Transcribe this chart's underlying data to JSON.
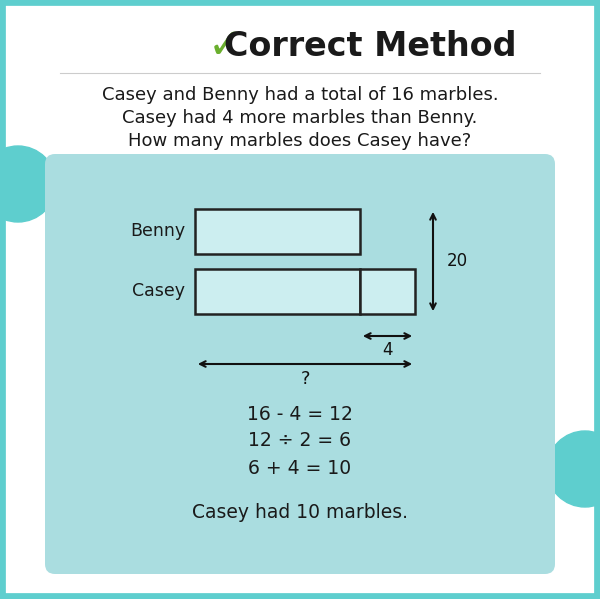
{
  "title": "Correct Method",
  "checkmark_color": "#6aaf2e",
  "title_color": "#1a1a1a",
  "background_color": "#ffffff",
  "border_color": "#5ecece",
  "border_linewidth": 7,
  "teal_circle_left_color": "#5ecece",
  "teal_circle_right_color": "#5ecece",
  "problem_lines": [
    "Casey and Benny had a total of 16 marbles.",
    "Casey had 4 more marbles than Benny.",
    "How many marbles does Casey have?"
  ],
  "problem_fontsize": 13.0,
  "diagram_bg_color": "#aadde0",
  "benny_label": "Benny",
  "casey_label": "Casey",
  "bar_fill_color": "#cceef0",
  "bar_edge_color": "#222222",
  "bar_linewidth": 1.8,
  "step1": "16 - 4 = 12",
  "step2": "12 ÷ 2 = 6",
  "step3": "6 + 4 = 10",
  "conclusion": "Casey had 10 marbles.",
  "math_fontsize": 13.5,
  "conclusion_fontsize": 13.5,
  "label_fontsize": 12.5,
  "annotation_color": "#111111",
  "arrow_color": "#111111",
  "title_fontsize": 24,
  "checkmark_fontsize": 30
}
